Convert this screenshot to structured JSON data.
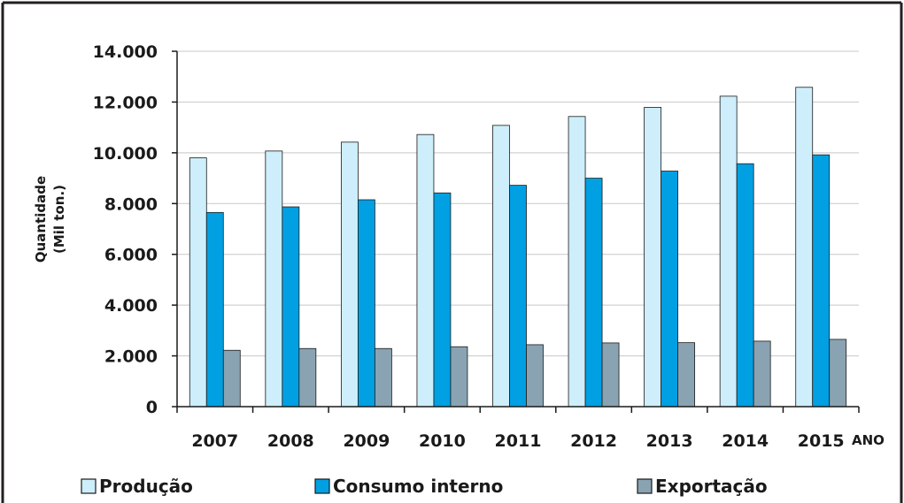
{
  "chart_data": {
    "type": "bar",
    "title": "",
    "xlabel": "ANO",
    "ylabel_lines": [
      "Quantidade",
      "(Mil ton.)"
    ],
    "ylim": [
      0,
      14000
    ],
    "yticks": [
      0,
      2000,
      4000,
      6000,
      8000,
      10000,
      12000,
      14000
    ],
    "ytick_labels": [
      "0",
      "2.000",
      "4.000",
      "6.000",
      "8.000",
      "10.000",
      "12.000",
      "14.000"
    ],
    "grid": true,
    "legend_position": "bottom",
    "categories": [
      "2007",
      "2008",
      "2009",
      "2010",
      "2011",
      "2012",
      "2013",
      "2014",
      "2015"
    ],
    "series": [
      {
        "name": "Produção",
        "color": "#cdeefa",
        "values": [
          9800,
          10070,
          10420,
          10720,
          11080,
          11430,
          11790,
          12230,
          12580
        ]
      },
      {
        "name": "Consumo interno",
        "color": "#00a0e3",
        "values": [
          7650,
          7870,
          8150,
          8420,
          8720,
          9000,
          9280,
          9570,
          9920
        ]
      },
      {
        "name": "Exportação",
        "color": "#8aa3b2",
        "values": [
          2220,
          2290,
          2290,
          2360,
          2440,
          2510,
          2520,
          2580,
          2650
        ]
      }
    ]
  }
}
